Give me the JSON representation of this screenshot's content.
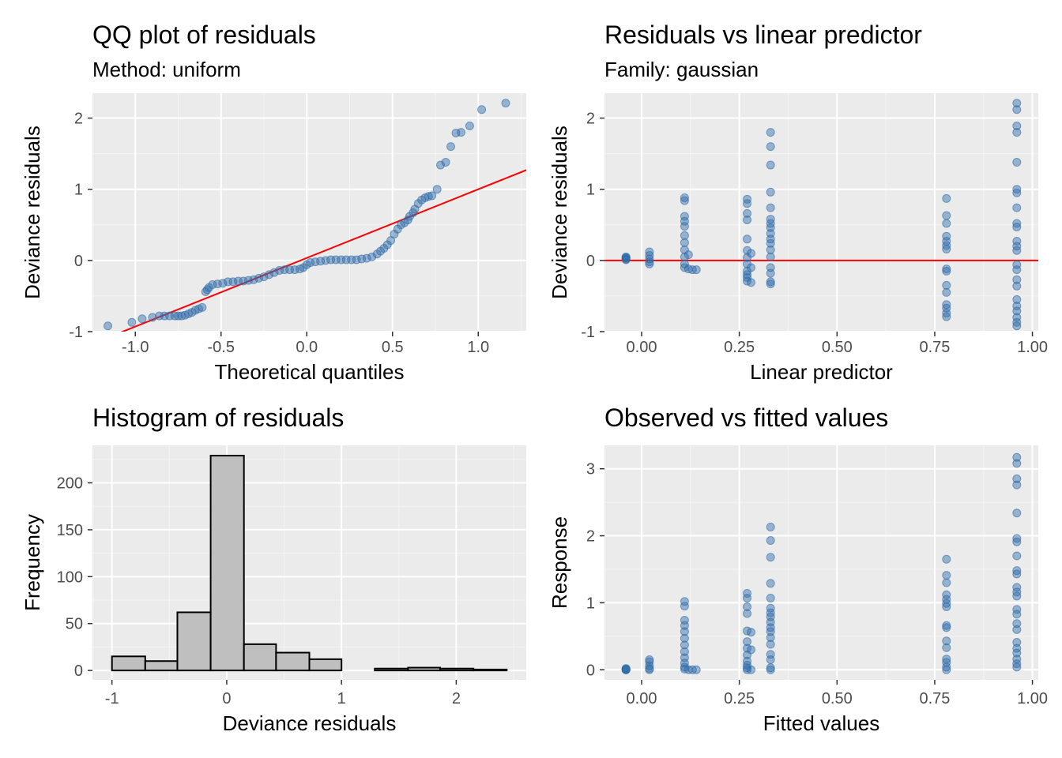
{
  "colors": {
    "point": "#2f6aa8",
    "reference_line": "#ff0000",
    "bar_fill": "#bfbfbf",
    "bar_outline": "#000000",
    "panel_background": "#ebebeb"
  },
  "chart_data": [
    {
      "type": "scatter",
      "title": "QQ plot of residuals",
      "subtitle": "Method: uniform",
      "xlabel": "Theoretical quantiles",
      "ylabel": "Deviance residuals",
      "xlim": [
        -1.25,
        1.28
      ],
      "ylim": [
        -1.0,
        2.35
      ],
      "xticks": [
        -1.0,
        -0.5,
        0.0,
        0.5,
        1.0
      ],
      "xtick_labels": [
        "-1.0",
        "-0.5",
        "0.0",
        "0.5",
        "1.0"
      ],
      "yticks": [
        -1,
        0,
        1,
        2
      ],
      "ytick_labels": [
        "-1",
        "0",
        "1",
        "2"
      ],
      "grid": true,
      "reference_line": {
        "x": [
          -1.25,
          1.28
        ],
        "y": [
          -1.17,
          1.27
        ]
      },
      "points": [
        [
          -1.16,
          -0.92
        ],
        [
          -1.02,
          -0.87
        ],
        [
          -0.96,
          -0.82
        ],
        [
          -0.9,
          -0.8
        ],
        [
          -0.86,
          -0.78
        ],
        [
          -0.83,
          -0.78
        ],
        [
          -0.8,
          -0.78
        ],
        [
          -0.77,
          -0.78
        ],
        [
          -0.75,
          -0.78
        ],
        [
          -0.73,
          -0.78
        ],
        [
          -0.71,
          -0.77
        ],
        [
          -0.69,
          -0.75
        ],
        [
          -0.67,
          -0.73
        ],
        [
          -0.65,
          -0.7
        ],
        [
          -0.63,
          -0.68
        ],
        [
          -0.61,
          -0.66
        ],
        [
          -0.59,
          -0.44
        ],
        [
          -0.58,
          -0.41
        ],
        [
          -0.57,
          -0.38
        ],
        [
          -0.55,
          -0.34
        ],
        [
          -0.52,
          -0.33
        ],
        [
          -0.49,
          -0.32
        ],
        [
          -0.46,
          -0.3
        ],
        [
          -0.43,
          -0.3
        ],
        [
          -0.4,
          -0.29
        ],
        [
          -0.37,
          -0.29
        ],
        [
          -0.34,
          -0.28
        ],
        [
          -0.31,
          -0.27
        ],
        [
          -0.28,
          -0.25
        ],
        [
          -0.25,
          -0.23
        ],
        [
          -0.22,
          -0.2
        ],
        [
          -0.19,
          -0.17
        ],
        [
          -0.16,
          -0.14
        ],
        [
          -0.13,
          -0.13
        ],
        [
          -0.1,
          -0.13
        ],
        [
          -0.07,
          -0.13
        ],
        [
          -0.04,
          -0.12
        ],
        [
          -0.02,
          -0.1
        ],
        [
          0.0,
          -0.06
        ],
        [
          0.02,
          -0.03
        ],
        [
          0.05,
          -0.02
        ],
        [
          0.08,
          -0.01
        ],
        [
          0.11,
          0.0
        ],
        [
          0.14,
          0.01
        ],
        [
          0.17,
          0.01
        ],
        [
          0.2,
          0.01
        ],
        [
          0.23,
          0.01
        ],
        [
          0.26,
          0.01
        ],
        [
          0.29,
          0.01
        ],
        [
          0.32,
          0.02
        ],
        [
          0.35,
          0.03
        ],
        [
          0.38,
          0.05
        ],
        [
          0.41,
          0.09
        ],
        [
          0.43,
          0.13
        ],
        [
          0.45,
          0.17
        ],
        [
          0.47,
          0.22
        ],
        [
          0.49,
          0.28
        ],
        [
          0.51,
          0.37
        ],
        [
          0.53,
          0.44
        ],
        [
          0.55,
          0.5
        ],
        [
          0.57,
          0.53
        ],
        [
          0.59,
          0.57
        ],
        [
          0.6,
          0.62
        ],
        [
          0.62,
          0.67
        ],
        [
          0.63,
          0.72
        ],
        [
          0.65,
          0.8
        ],
        [
          0.67,
          0.85
        ],
        [
          0.69,
          0.88
        ],
        [
          0.71,
          0.9
        ],
        [
          0.73,
          0.91
        ],
        [
          0.76,
          1.0
        ],
        [
          0.78,
          1.34
        ],
        [
          0.81,
          1.38
        ],
        [
          0.84,
          1.6
        ],
        [
          0.87,
          1.79
        ],
        [
          0.9,
          1.8
        ],
        [
          0.95,
          1.89
        ],
        [
          1.02,
          2.12
        ],
        [
          1.16,
          2.21
        ]
      ]
    },
    {
      "type": "scatter",
      "title": "Residuals vs linear predictor",
      "subtitle": "Family: gaussian",
      "xlabel": "Linear predictor",
      "ylabel": "Deviance residuals",
      "xlim": [
        -0.095,
        1.015
      ],
      "ylim": [
        -1.0,
        2.35
      ],
      "xticks": [
        0.0,
        0.25,
        0.5,
        0.75,
        1.0
      ],
      "xtick_labels": [
        "0.00",
        "0.25",
        "0.50",
        "0.75",
        "1.00"
      ],
      "yticks": [
        -1,
        0,
        1,
        2
      ],
      "ytick_labels": [
        "-1",
        "0",
        "1",
        "2"
      ],
      "grid": true,
      "reference_line": {
        "y": 0
      },
      "points": [
        [
          -0.04,
          0.05
        ],
        [
          -0.04,
          0.04
        ],
        [
          -0.04,
          0.03
        ],
        [
          -0.04,
          0.02
        ],
        [
          -0.04,
          0.01
        ],
        [
          0.02,
          0.12
        ],
        [
          0.02,
          0.07
        ],
        [
          0.02,
          0.02
        ],
        [
          0.02,
          -0.02
        ],
        [
          0.02,
          -0.05
        ],
        [
          0.11,
          0.88
        ],
        [
          0.11,
          0.84
        ],
        [
          0.11,
          0.62
        ],
        [
          0.11,
          0.55
        ],
        [
          0.11,
          0.48
        ],
        [
          0.11,
          0.35
        ],
        [
          0.11,
          0.25
        ],
        [
          0.11,
          0.15
        ],
        [
          0.11,
          0.05
        ],
        [
          0.11,
          -0.05
        ],
        [
          0.11,
          -0.1
        ],
        [
          0.12,
          -0.12
        ],
        [
          0.13,
          -0.13
        ],
        [
          0.14,
          -0.13
        ],
        [
          0.12,
          0.08
        ],
        [
          0.27,
          0.86
        ],
        [
          0.27,
          0.8
        ],
        [
          0.27,
          0.66
        ],
        [
          0.27,
          0.57
        ],
        [
          0.27,
          0.3
        ],
        [
          0.27,
          0.14
        ],
        [
          0.27,
          0.04
        ],
        [
          0.27,
          -0.05
        ],
        [
          0.27,
          -0.15
        ],
        [
          0.27,
          -0.2
        ],
        [
          0.27,
          -0.24
        ],
        [
          0.27,
          -0.29
        ],
        [
          0.28,
          -0.31
        ],
        [
          0.28,
          0.1
        ],
        [
          0.28,
          -0.1
        ],
        [
          0.33,
          1.8
        ],
        [
          0.33,
          1.6
        ],
        [
          0.33,
          1.34
        ],
        [
          0.33,
          0.96
        ],
        [
          0.33,
          0.74
        ],
        [
          0.33,
          0.58
        ],
        [
          0.33,
          0.52
        ],
        [
          0.33,
          0.46
        ],
        [
          0.33,
          0.38
        ],
        [
          0.33,
          0.3
        ],
        [
          0.33,
          0.15
        ],
        [
          0.33,
          0.05
        ],
        [
          0.33,
          -0.1
        ],
        [
          0.33,
          -0.18
        ],
        [
          0.33,
          -0.3
        ],
        [
          0.33,
          -0.33
        ],
        [
          0.33,
          0.24
        ],
        [
          0.78,
          0.87
        ],
        [
          0.78,
          0.63
        ],
        [
          0.78,
          0.52
        ],
        [
          0.78,
          0.34
        ],
        [
          0.78,
          0.27
        ],
        [
          0.78,
          0.21
        ],
        [
          0.78,
          0.16
        ],
        [
          0.78,
          -0.12
        ],
        [
          0.78,
          -0.15
        ],
        [
          0.78,
          -0.35
        ],
        [
          0.78,
          -0.45
        ],
        [
          0.78,
          -0.62
        ],
        [
          0.78,
          -0.67
        ],
        [
          0.78,
          -0.74
        ],
        [
          0.78,
          -0.79
        ],
        [
          0.96,
          2.21
        ],
        [
          0.96,
          2.12
        ],
        [
          0.96,
          1.89
        ],
        [
          0.96,
          1.8
        ],
        [
          0.96,
          1.38
        ],
        [
          0.96,
          1.0
        ],
        [
          0.96,
          0.95
        ],
        [
          0.96,
          0.74
        ],
        [
          0.96,
          0.52
        ],
        [
          0.96,
          0.47
        ],
        [
          0.96,
          0.27
        ],
        [
          0.96,
          0.2
        ],
        [
          0.96,
          0.14
        ],
        [
          0.96,
          -0.06
        ],
        [
          0.96,
          -0.13
        ],
        [
          0.96,
          -0.27
        ],
        [
          0.96,
          -0.36
        ],
        [
          0.96,
          -0.55
        ],
        [
          0.96,
          -0.64
        ],
        [
          0.96,
          -0.71
        ],
        [
          0.96,
          -0.8
        ],
        [
          0.96,
          -0.87
        ],
        [
          0.96,
          -0.92
        ]
      ]
    },
    {
      "type": "bar",
      "title": "Histogram of residuals",
      "xlabel": "Deviance residuals",
      "ylabel": "Frequency",
      "xlim": [
        -1.17,
        2.61
      ],
      "ylim": [
        -10,
        240
      ],
      "xticks": [
        -1,
        0,
        1,
        2
      ],
      "xtick_labels": [
        "-1",
        "0",
        "1",
        "2"
      ],
      "yticks": [
        0,
        50,
        100,
        150,
        200
      ],
      "ytick_labels": [
        "0",
        "50",
        "100",
        "150",
        "200"
      ],
      "grid": true,
      "bins": [
        {
          "x0": -1.0,
          "x1": -0.71,
          "count": 15
        },
        {
          "x0": -0.71,
          "x1": -0.43,
          "count": 10
        },
        {
          "x0": -0.43,
          "x1": -0.14,
          "count": 62
        },
        {
          "x0": -0.14,
          "x1": 0.15,
          "count": 229
        },
        {
          "x0": 0.15,
          "x1": 0.43,
          "count": 28
        },
        {
          "x0": 0.43,
          "x1": 0.72,
          "count": 19
        },
        {
          "x0": 0.72,
          "x1": 1.0,
          "count": 12
        },
        {
          "x0": 1.0,
          "x1": 1.29,
          "count": 0
        },
        {
          "x0": 1.29,
          "x1": 1.58,
          "count": 2
        },
        {
          "x0": 1.58,
          "x1": 1.86,
          "count": 3
        },
        {
          "x0": 1.86,
          "x1": 2.15,
          "count": 2
        },
        {
          "x0": 2.15,
          "x1": 2.44,
          "count": 1
        }
      ]
    },
    {
      "type": "scatter",
      "title": "Observed vs fitted values",
      "xlabel": "Fitted values",
      "ylabel": "Response",
      "xlim": [
        -0.095,
        1.015
      ],
      "ylim": [
        -0.15,
        3.35
      ],
      "xticks": [
        0.0,
        0.25,
        0.5,
        0.75,
        1.0
      ],
      "xtick_labels": [
        "0.00",
        "0.25",
        "0.50",
        "0.75",
        "1.00"
      ],
      "yticks": [
        0,
        1,
        2,
        3
      ],
      "ytick_labels": [
        "0",
        "1",
        "2",
        "3"
      ],
      "grid": true,
      "points": [
        [
          -0.04,
          0.02
        ],
        [
          -0.04,
          0.01
        ],
        [
          -0.04,
          0.0
        ],
        [
          -0.04,
          0.0
        ],
        [
          -0.04,
          0.0
        ],
        [
          0.02,
          0.15
        ],
        [
          0.02,
          0.12
        ],
        [
          0.02,
          0.06
        ],
        [
          0.02,
          0.02
        ],
        [
          0.02,
          0.0
        ],
        [
          0.11,
          1.02
        ],
        [
          0.11,
          0.95
        ],
        [
          0.11,
          0.74
        ],
        [
          0.11,
          0.66
        ],
        [
          0.11,
          0.57
        ],
        [
          0.11,
          0.47
        ],
        [
          0.11,
          0.37
        ],
        [
          0.11,
          0.27
        ],
        [
          0.11,
          0.18
        ],
        [
          0.11,
          0.1
        ],
        [
          0.11,
          0.04
        ],
        [
          0.11,
          0.01
        ],
        [
          0.12,
          0.0
        ],
        [
          0.13,
          0.0
        ],
        [
          0.14,
          0.0
        ],
        [
          0.27,
          1.14
        ],
        [
          0.27,
          1.07
        ],
        [
          0.27,
          0.94
        ],
        [
          0.27,
          0.84
        ],
        [
          0.27,
          0.58
        ],
        [
          0.27,
          0.42
        ],
        [
          0.27,
          0.32
        ],
        [
          0.27,
          0.22
        ],
        [
          0.27,
          0.13
        ],
        [
          0.27,
          0.07
        ],
        [
          0.27,
          0.03
        ],
        [
          0.27,
          0.0
        ],
        [
          0.28,
          0.56
        ],
        [
          0.28,
          0.3
        ],
        [
          0.28,
          0.0
        ],
        [
          0.33,
          2.13
        ],
        [
          0.33,
          1.93
        ],
        [
          0.33,
          1.68
        ],
        [
          0.33,
          1.29
        ],
        [
          0.33,
          1.07
        ],
        [
          0.33,
          0.92
        ],
        [
          0.33,
          0.85
        ],
        [
          0.33,
          0.79
        ],
        [
          0.33,
          0.71
        ],
        [
          0.33,
          0.63
        ],
        [
          0.33,
          0.48
        ],
        [
          0.33,
          0.38
        ],
        [
          0.33,
          0.23
        ],
        [
          0.33,
          0.15
        ],
        [
          0.33,
          0.03
        ],
        [
          0.33,
          0.0
        ],
        [
          0.33,
          0.57
        ],
        [
          0.78,
          1.65
        ],
        [
          0.78,
          1.41
        ],
        [
          0.78,
          1.3
        ],
        [
          0.78,
          1.12
        ],
        [
          0.78,
          1.05
        ],
        [
          0.78,
          0.99
        ],
        [
          0.78,
          0.94
        ],
        [
          0.78,
          0.66
        ],
        [
          0.78,
          0.63
        ],
        [
          0.78,
          0.43
        ],
        [
          0.78,
          0.33
        ],
        [
          0.78,
          0.16
        ],
        [
          0.78,
          0.11
        ],
        [
          0.78,
          0.04
        ],
        [
          0.78,
          0.0
        ],
        [
          0.96,
          3.17
        ],
        [
          0.96,
          3.08
        ],
        [
          0.96,
          2.85
        ],
        [
          0.96,
          2.76
        ],
        [
          0.96,
          2.34
        ],
        [
          0.96,
          1.96
        ],
        [
          0.96,
          1.91
        ],
        [
          0.96,
          1.7
        ],
        [
          0.96,
          1.48
        ],
        [
          0.96,
          1.43
        ],
        [
          0.96,
          1.23
        ],
        [
          0.96,
          1.16
        ],
        [
          0.96,
          1.1
        ],
        [
          0.96,
          0.9
        ],
        [
          0.96,
          0.83
        ],
        [
          0.96,
          0.69
        ],
        [
          0.96,
          0.6
        ],
        [
          0.96,
          0.41
        ],
        [
          0.96,
          0.32
        ],
        [
          0.96,
          0.25
        ],
        [
          0.96,
          0.16
        ],
        [
          0.96,
          0.09
        ],
        [
          0.96,
          0.04
        ]
      ]
    }
  ]
}
